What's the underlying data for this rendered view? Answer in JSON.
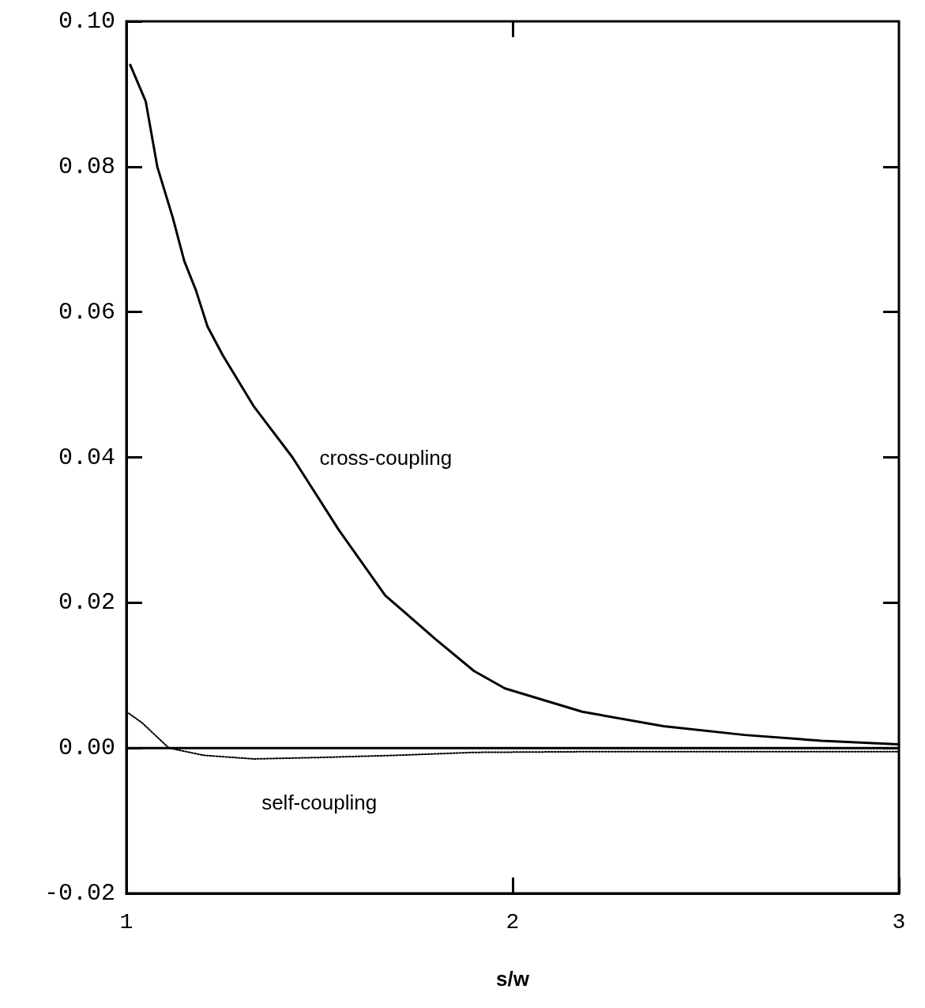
{
  "chart_data": {
    "type": "line",
    "xlabel": "s/w",
    "xlim": [
      1,
      3
    ],
    "xticks": [
      1,
      2,
      3
    ],
    "ylim": [
      -0.02,
      0.1
    ],
    "yticks": [
      {
        "value": -0.02,
        "label": "-0.02"
      },
      {
        "value": 0,
        "label": "0.00"
      },
      {
        "value": 0.02,
        "label": "0.02"
      },
      {
        "value": 0.04,
        "label": "0.04"
      },
      {
        "value": 0.06,
        "label": "0.06"
      },
      {
        "value": 0.08,
        "label": "0.08"
      },
      {
        "value": 0.1,
        "label": "0.10"
      }
    ],
    "grid": false,
    "legend": false,
    "marker": "none",
    "ref_lines": [
      {
        "axis": "y",
        "value": 0,
        "color": "#000000",
        "line_style": "solid"
      }
    ],
    "series": [
      {
        "name": "cross-coupling",
        "color": "#000000",
        "line_style": "solid",
        "x": [
          1.01,
          1.05,
          1.08,
          1.12,
          1.15,
          1.18,
          1.21,
          1.25,
          1.33,
          1.43,
          1.55,
          1.67,
          1.8,
          1.9,
          1.98,
          2.18,
          2.39,
          2.6,
          2.8,
          3.0
        ],
        "values": [
          0.094,
          0.089,
          0.08,
          0.073,
          0.067,
          0.063,
          0.058,
          0.054,
          0.047,
          0.04,
          0.03,
          0.021,
          0.015,
          0.0106,
          0.0082,
          0.005,
          0.003,
          0.0018,
          0.001,
          0.0005
        ]
      },
      {
        "name": "self-coupling",
        "color": "#000000",
        "line_style": "dotted",
        "x": [
          1.0,
          1.04,
          1.08,
          1.11,
          1.2,
          1.33,
          1.5,
          1.7,
          1.9,
          2.2,
          2.6,
          3.0
        ],
        "values": [
          0.005,
          0.0035,
          0.0015,
          0,
          -0.001,
          -0.0015,
          -0.0013,
          -0.001,
          -0.0006,
          -0.0005,
          -0.0005,
          -0.0005
        ]
      }
    ]
  }
}
